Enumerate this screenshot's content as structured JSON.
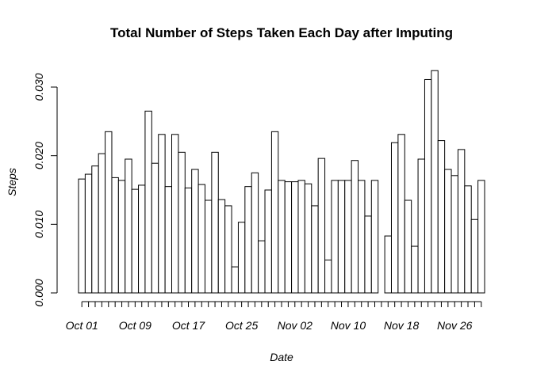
{
  "chart_data": {
    "type": "bar",
    "title": "Total Number of Steps Taken Each Day after Imputing",
    "x_label": "Date",
    "y_label": "Steps",
    "categories": [
      "Oct 01",
      null,
      null,
      null,
      null,
      null,
      null,
      null,
      "Oct 09",
      null,
      null,
      null,
      null,
      null,
      null,
      null,
      "Oct 17",
      null,
      null,
      null,
      null,
      null,
      null,
      null,
      "Oct 25",
      null,
      null,
      null,
      null,
      null,
      null,
      null,
      "Nov 02",
      null,
      null,
      null,
      null,
      null,
      null,
      null,
      "Nov 10",
      null,
      null,
      null,
      null,
      null,
      null,
      null,
      "Nov 18",
      null,
      null,
      null,
      null,
      null,
      null,
      null,
      "Nov 26",
      null,
      null,
      null,
      null
    ],
    "values": [
      0.0166,
      0.0173,
      0.0185,
      0.0203,
      0.0235,
      0.0168,
      0.0164,
      0.0195,
      0.0151,
      0.0157,
      0.0265,
      0.0189,
      0.0231,
      0.0155,
      0.0231,
      0.0205,
      0.0153,
      0.018,
      0.0158,
      0.0135,
      0.0205,
      0.0136,
      0.0127,
      0.0038,
      0.0103,
      0.0155,
      0.0175,
      0.0076,
      0.015,
      0.0235,
      0.0164,
      0.0162,
      0.0162,
      0.0164,
      0.0159,
      0.0127,
      0.0196,
      0.0048,
      0.0164,
      0.0164,
      0.0164,
      0.0193,
      0.0164,
      0.0112,
      0.0164,
      0,
      0.0083,
      0.0219,
      0.0231,
      0.0135,
      0.0068,
      0.0195,
      0.0311,
      0.0324,
      0.0222,
      0.018,
      0.0171,
      0.0209,
      0.0156,
      0.0107,
      0.0164
    ],
    "color": "#ffffff",
    "ylim": [
      0,
      0.03
    ],
    "yticks": [
      {
        "value": 0,
        "label": "0.000"
      },
      {
        "value": 0.01,
        "label": "0.010"
      },
      {
        "value": 0.02,
        "label": "0.020"
      },
      {
        "value": 0.03,
        "label": "0.030"
      }
    ],
    "grid": false
  }
}
